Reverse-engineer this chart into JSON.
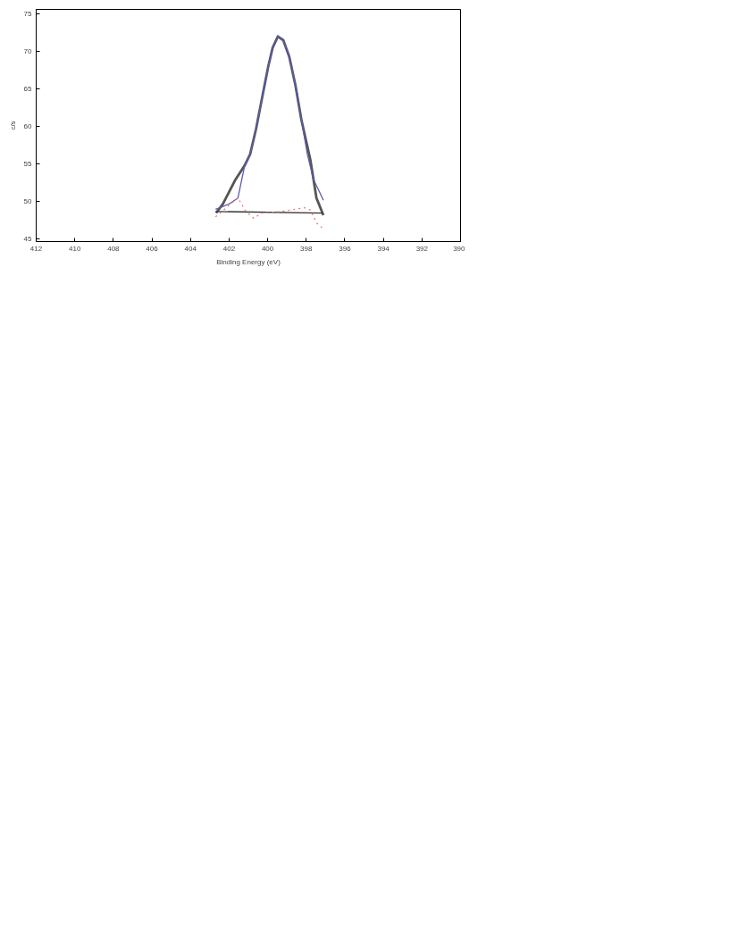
{
  "chart_data": {
    "type": "line",
    "xlabel": "Binding Energy (eV)",
    "ylabel": "c/s",
    "xlim": [
      412,
      390
    ],
    "ylim": [
      44.7,
      75.6
    ],
    "xticks": [
      412,
      410,
      408,
      406,
      404,
      402,
      400,
      398,
      396,
      394,
      392,
      390
    ],
    "yticks": [
      45,
      50,
      55,
      60,
      65,
      70,
      75
    ],
    "grid": false,
    "series": [
      {
        "color": "#555555",
        "line_style": "solid",
        "x": [
          402.67,
          402.32,
          401.7,
          401.2,
          400.91,
          400.6,
          400.29,
          399.97,
          399.74,
          399.47,
          399.19,
          398.88,
          398.56,
          398.25,
          397.78,
          397.47,
          397.11
        ],
        "values": [
          48.5,
          49.7,
          52.8,
          54.8,
          56.3,
          59.7,
          63.8,
          68.0,
          70.5,
          72.0,
          71.5,
          69.3,
          65.5,
          60.9,
          55.5,
          50.5,
          48.2
        ]
      },
      {
        "color": "#5a5ab4",
        "line_style": "solid",
        "x": [
          402.7,
          402.48,
          402.0,
          401.54,
          401.2,
          400.91,
          400.6,
          400.29,
          399.97,
          399.74,
          399.47,
          399.19,
          398.88,
          398.56,
          398.25,
          397.94,
          397.63,
          397.31,
          397.11
        ],
        "values": [
          49.0,
          49.2,
          49.7,
          50.5,
          54.7,
          56.3,
          59.7,
          63.8,
          68.0,
          70.5,
          72.0,
          71.5,
          69.3,
          65.5,
          60.9,
          56.3,
          53.0,
          51.3,
          50.2
        ]
      },
      {
        "color": "#333333",
        "line_style": "solid",
        "x": [
          402.7,
          397.16
        ],
        "values": [
          48.7,
          48.5
        ]
      },
      {
        "color": "#e87a7a",
        "line_style": "dotted",
        "x": [
          402.7,
          402.32,
          401.93,
          401.54,
          401.15,
          400.73,
          400.29,
          399.66,
          399.03,
          398.56,
          398.1,
          397.78,
          397.47,
          397.16
        ],
        "values": [
          48.0,
          48.8,
          49.7,
          50.5,
          48.8,
          47.8,
          48.5,
          48.6,
          48.8,
          49.0,
          49.2,
          48.9,
          47.2,
          46.5
        ]
      }
    ]
  }
}
